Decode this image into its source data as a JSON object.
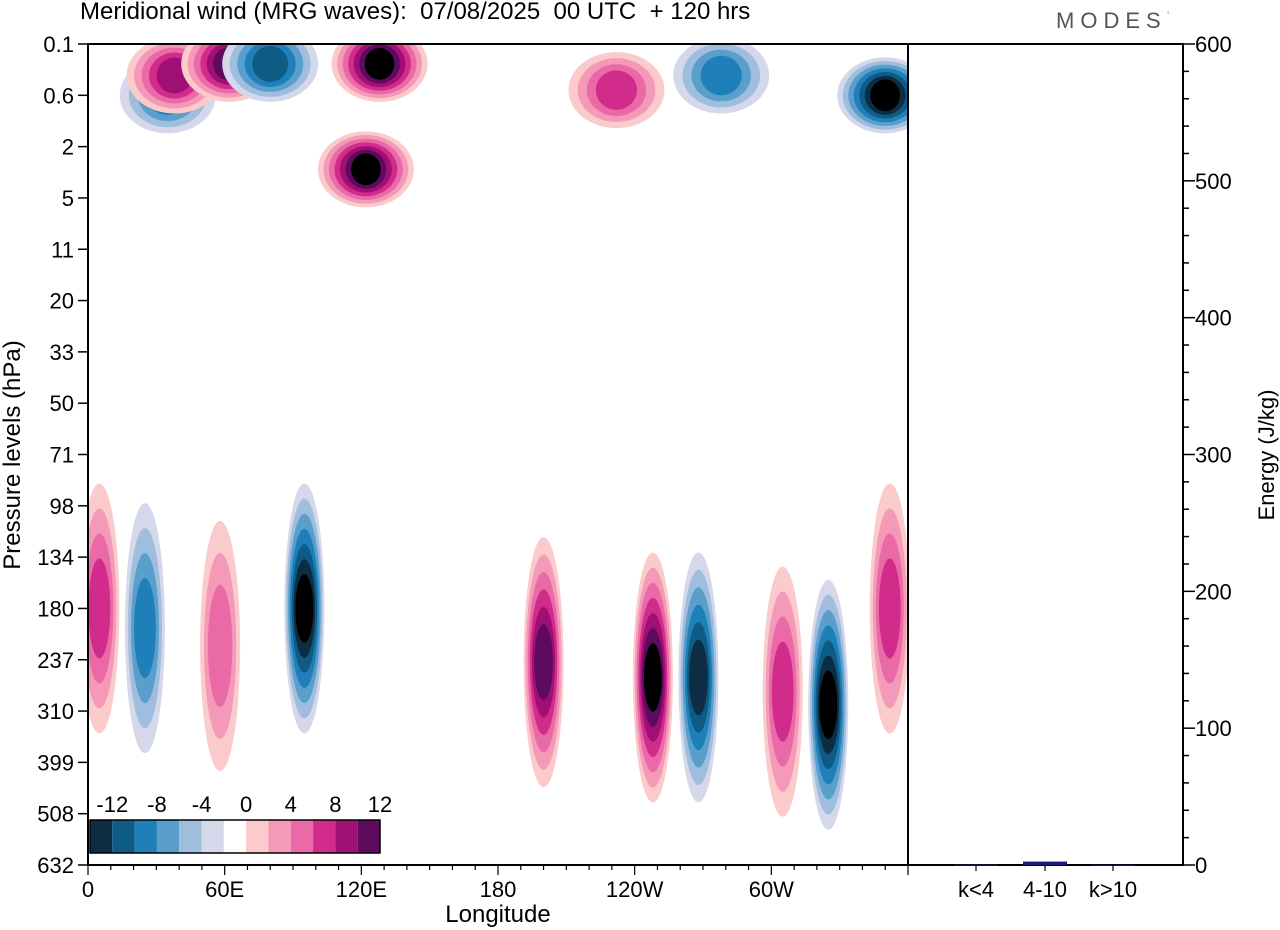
{
  "title": "Meridional wind (MRG waves):  07/08/2025  00 UTC  + 120 hrs",
  "logo_text": "MODES",
  "chart_data": [
    {
      "type": "heatmap",
      "title": "Meridional wind (MRG waves)",
      "xlabel": "Longitude",
      "ylabel": "Pressure levels (hPa)",
      "x_ticks": [
        "0",
        "60E",
        "120E",
        "180",
        "120W",
        "60W"
      ],
      "x_tick_values": [
        0,
        60,
        120,
        180,
        240,
        300
      ],
      "xlim": [
        0,
        360
      ],
      "y_ticks": [
        "0.1",
        "0.6",
        "2",
        "5",
        "11",
        "20",
        "33",
        "50",
        "71",
        "98",
        "134",
        "180",
        "237",
        "310",
        "399",
        "508",
        "632"
      ],
      "colorbar": {
        "labels": [
          "-12",
          "-8",
          "-4",
          "0",
          "4",
          "8",
          "12"
        ],
        "levels": [
          -14,
          -12,
          -10,
          -8,
          -6,
          -4,
          -2,
          2,
          4,
          6,
          8,
          10,
          12,
          14
        ],
        "colors": [
          "#0d2d45",
          "#0e5c86",
          "#1f7fb9",
          "#5a9fcc",
          "#9fbddc",
          "#d4d8ea",
          "#ffffff",
          "#fbcaca",
          "#f49ab8",
          "#e96aa6",
          "#d12b8c",
          "#a01074",
          "#5e0a5e"
        ]
      },
      "features": [
        {
          "lon": 35,
          "level": 0.6,
          "value": -8
        },
        {
          "lon": 38,
          "level": 0.3,
          "value": 10
        },
        {
          "lon": 62,
          "level": 0.2,
          "value": 12
        },
        {
          "lon": 80,
          "level": 0.2,
          "value": -10
        },
        {
          "lon": 128,
          "level": 0.2,
          "value": 14
        },
        {
          "lon": 122,
          "level": 3,
          "value": 14
        },
        {
          "lon": 232,
          "level": 0.5,
          "value": 8
        },
        {
          "lon": 278,
          "level": 0.3,
          "value": -8
        },
        {
          "lon": 350,
          "level": 0.6,
          "value": -14
        },
        {
          "lon": 95,
          "level": 180,
          "value": -14
        },
        {
          "lon": 25,
          "level": 200,
          "value": -8
        },
        {
          "lon": 58,
          "level": 220,
          "value": 6
        },
        {
          "lon": 200,
          "level": 240,
          "value": 12
        },
        {
          "lon": 248,
          "level": 260,
          "value": 14
        },
        {
          "lon": 268,
          "level": 260,
          "value": -12
        },
        {
          "lon": 305,
          "level": 280,
          "value": 8
        },
        {
          "lon": 325,
          "level": 300,
          "value": -14
        },
        {
          "lon": 352,
          "level": 180,
          "value": 8
        },
        {
          "lon": 5,
          "level": 180,
          "value": 8
        }
      ]
    },
    {
      "type": "bar",
      "ylabel": "Energy (J/kg)",
      "categories": [
        "k<4",
        "4-10",
        "k>10"
      ],
      "values": [
        0.3,
        2.5,
        0.2
      ],
      "colors": [
        "#1a1a80",
        "#1a1a80",
        "#1a1a80"
      ],
      "ylim": [
        0,
        600
      ],
      "y_ticks": [
        0,
        100,
        200,
        300,
        400,
        500,
        600
      ]
    }
  ]
}
